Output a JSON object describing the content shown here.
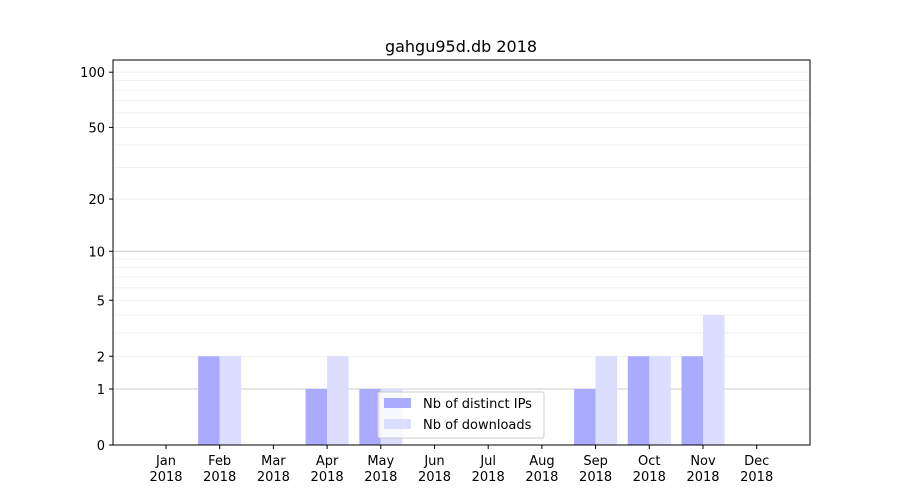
{
  "chart_data": {
    "type": "bar",
    "title": "gahgu95d.db 2018",
    "xlabel": "",
    "ylabel": "",
    "yscale": "symlog",
    "ylim": [
      0,
      116
    ],
    "yticks": [
      0,
      1,
      2,
      5,
      10,
      20,
      50,
      100
    ],
    "grid": true,
    "legend_position": "bottom-center",
    "categories": [
      "Jan\n2018",
      "Feb\n2018",
      "Mar\n2018",
      "Apr\n2018",
      "May\n2018",
      "Jun\n2018",
      "Jul\n2018",
      "Aug\n2018",
      "Sep\n2018",
      "Oct\n2018",
      "Nov\n2018",
      "Dec\n2018"
    ],
    "series": [
      {
        "name": "Nb of distinct IPs",
        "color": "#aaaaff",
        "values": [
          0,
          2,
          0,
          1,
          1,
          0,
          0,
          0,
          1,
          2,
          2,
          0
        ]
      },
      {
        "name": "Nb of downloads",
        "color": "#ddddff",
        "values": [
          0,
          2,
          0,
          2,
          1,
          0,
          0,
          0,
          2,
          2,
          4,
          0
        ]
      }
    ]
  }
}
